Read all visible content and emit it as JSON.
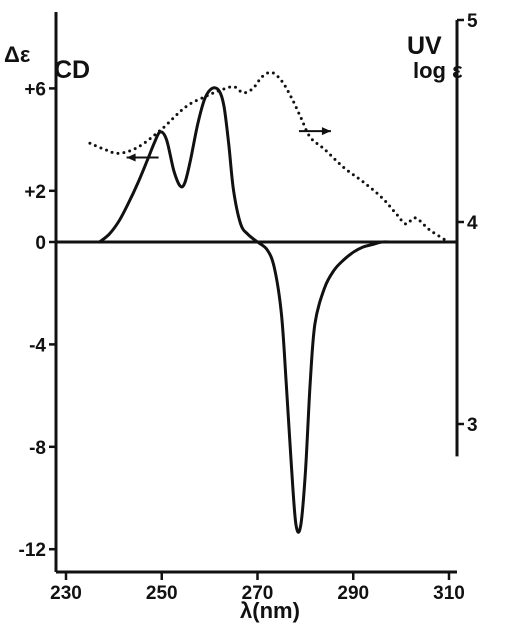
{
  "chart_data": {
    "type": "line",
    "xlabel": "λ(nm)",
    "x_ticks": [
      230,
      250,
      270,
      290,
      310
    ],
    "xlim": [
      230,
      310
    ],
    "left_axis": {
      "label": "Δε",
      "ylim": [
        -13,
        8
      ],
      "ticks": [
        {
          "value": 6,
          "label": "+6"
        },
        {
          "value": 2,
          "label": "+2"
        },
        {
          "value": 0,
          "label": "0"
        },
        {
          "value": -4,
          "label": "-4"
        },
        {
          "value": -8,
          "label": "-8"
        },
        {
          "value": -12,
          "label": "-12"
        }
      ]
    },
    "right_axis": {
      "label": "log ε",
      "ylim": [
        2.84,
        5.0
      ],
      "ticks": [
        {
          "value": 5,
          "label": "5"
        },
        {
          "value": 4,
          "label": "4"
        },
        {
          "value": 3,
          "label": "3"
        }
      ]
    },
    "panel_labels": {
      "cd": "CD",
      "uv": "UV"
    },
    "series": [
      {
        "name": "CD",
        "axis": "left",
        "style": "solid",
        "points": [
          [
            237,
            0
          ],
          [
            239,
            0.3
          ],
          [
            241,
            0.8
          ],
          [
            243,
            1.5
          ],
          [
            245,
            2.3
          ],
          [
            247,
            3.2
          ],
          [
            248.5,
            3.9
          ],
          [
            249.7,
            4.3
          ],
          [
            251,
            4.0
          ],
          [
            252.5,
            2.8
          ],
          [
            253.8,
            2.2
          ],
          [
            254.8,
            2.3
          ],
          [
            256,
            3.2
          ],
          [
            257.5,
            4.6
          ],
          [
            259,
            5.6
          ],
          [
            260.5,
            6.0
          ],
          [
            262,
            5.9
          ],
          [
            263,
            5.3
          ],
          [
            264,
            3.8
          ],
          [
            265,
            2.0
          ],
          [
            266.5,
            0.7
          ],
          [
            268,
            0.3
          ],
          [
            270,
            0
          ],
          [
            272,
            -0.3
          ],
          [
            273.5,
            -1.0
          ],
          [
            275,
            -2.8
          ],
          [
            276,
            -5.5
          ],
          [
            277,
            -8.5
          ],
          [
            278,
            -11.0
          ],
          [
            279,
            -11.1
          ],
          [
            280,
            -9.0
          ],
          [
            281,
            -5.5
          ],
          [
            282,
            -3.2
          ],
          [
            284,
            -1.8
          ],
          [
            286,
            -1.1
          ],
          [
            288,
            -0.7
          ],
          [
            290,
            -0.4
          ],
          [
            292,
            -0.2
          ],
          [
            294,
            -0.1
          ],
          [
            296,
            0
          ],
          [
            298,
            0
          ]
        ]
      },
      {
        "name": "UV",
        "axis": "right",
        "style": "dotted",
        "points": [
          [
            235,
            4.39
          ],
          [
            238,
            4.36
          ],
          [
            241,
            4.34
          ],
          [
            245,
            4.37
          ],
          [
            250,
            4.46
          ],
          [
            255,
            4.57
          ],
          [
            259,
            4.62
          ],
          [
            262,
            4.65
          ],
          [
            265,
            4.67
          ],
          [
            267,
            4.64
          ],
          [
            269,
            4.66
          ],
          [
            271,
            4.72
          ],
          [
            273,
            4.74
          ],
          [
            275,
            4.7
          ],
          [
            277,
            4.62
          ],
          [
            279,
            4.52
          ],
          [
            281,
            4.42
          ],
          [
            284,
            4.36
          ],
          [
            288,
            4.27
          ],
          [
            292,
            4.2
          ],
          [
            296,
            4.12
          ],
          [
            299,
            4.04
          ],
          [
            301,
            3.99
          ],
          [
            303,
            4.02
          ],
          [
            306,
            3.96
          ],
          [
            310,
            3.9
          ]
        ]
      }
    ],
    "arrows": [
      {
        "series": "CD",
        "direction": "left",
        "x": 246,
        "y": 3.3,
        "axis": "left"
      },
      {
        "series": "UV",
        "direction": "right",
        "x": 282,
        "y": 4.45,
        "axis": "right"
      }
    ]
  }
}
